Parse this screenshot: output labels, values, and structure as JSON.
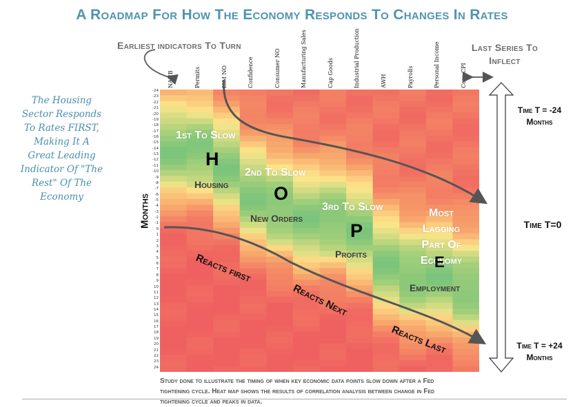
{
  "title": "A Roadmap For How The Economy Responds To Changes In Rates",
  "callouts": {
    "earliest": "Earliest indicators To Turn",
    "last": "Last Series To Inflect"
  },
  "side_note": [
    "The Housing",
    "Sector Responds",
    "To Rates FIRST,",
    "Making It A",
    "Great Leading",
    "Indicator Of \"The",
    "Rest\" Of The",
    "Economy"
  ],
  "chart_data": {
    "type": "heatmap",
    "ylabel": "Months",
    "columns": [
      "NAHB",
      "Permits",
      "ISM NO",
      "Confidence",
      "Consumer NO",
      "Manufacturing Sales",
      "Cap Goods",
      "Industrial Production",
      "AWH",
      "Payrolls",
      "Personal Income",
      "Core CPI"
    ],
    "rows": [
      -24,
      -23,
      -22,
      -21,
      -20,
      -19,
      -18,
      -17,
      -16,
      -15,
      -14,
      -13,
      -12,
      -11,
      -10,
      -9,
      -8,
      -7,
      -6,
      -5,
      -4,
      -3,
      -2,
      -1,
      0,
      1,
      2,
      3,
      4,
      5,
      6,
      7,
      8,
      9,
      10,
      11,
      12,
      13,
      14,
      15,
      16,
      17,
      18,
      19,
      20,
      21,
      22,
      23,
      24
    ],
    "colorscale": [
      "#ef6160",
      "#f7a26a",
      "#fde68b",
      "#a8d07a",
      "#63be7b"
    ],
    "value_range": [
      -1,
      1
    ],
    "peak_month_by_column": [
      -14,
      -14,
      -11,
      -6,
      -4,
      -2,
      -2,
      0,
      6,
      8,
      8,
      10
    ]
  },
  "labels": {
    "first": "1st To Slow",
    "second": "2nd To Slow",
    "third": "3rd To Slow",
    "most": [
      "Most",
      "Lagging",
      "Part Of",
      "Economy"
    ],
    "H": "H",
    "O": "O",
    "P": "P",
    "E": "E",
    "housing": "Housing",
    "new_orders": "New Orders",
    "profits": "Profits",
    "employment": "Employment"
  },
  "reacts": {
    "first": "Reacts first",
    "next": "Reacts Next",
    "last": "Reacts Last"
  },
  "right_times": {
    "top": [
      "Time T = -24",
      "Months"
    ],
    "mid": "Time T=0",
    "bottom": [
      "Time T = +24",
      "Months"
    ]
  },
  "footnote": [
    "Study done to illustrate the timing of when key economic data points slow down after a Fed",
    "tightening cycle. Heat map shows the results of correlation analysis between change in Fed",
    "tightening cycle and peaks in data."
  ],
  "colors": {
    "title": "#4f94b1",
    "hand": "#4a8eae",
    "callout": "#6b6b6b",
    "arrow": "#555555"
  }
}
